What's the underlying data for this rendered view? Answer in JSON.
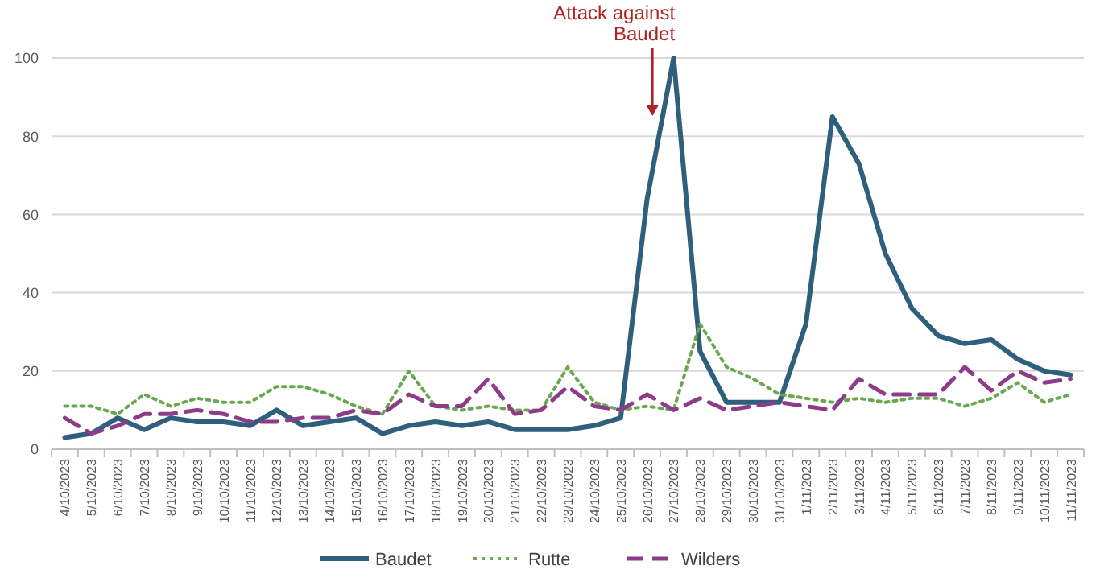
{
  "chart_data": {
    "type": "line",
    "categories": [
      "4/10/2023",
      "5/10/2023",
      "6/10/2023",
      "7/10/2023",
      "8/10/2023",
      "9/10/2023",
      "10/10/2023",
      "11/10/2023",
      "12/10/2023",
      "13/10/2023",
      "14/10/2023",
      "15/10/2023",
      "16/10/2023",
      "17/10/2023",
      "18/10/2023",
      "19/10/2023",
      "20/10/2023",
      "21/10/2023",
      "22/10/2023",
      "23/10/2023",
      "24/10/2023",
      "25/10/2023",
      "26/10/2023",
      "27/10/2023",
      "28/10/2023",
      "29/10/2023",
      "30/10/2023",
      "31/10/2023",
      "1/11/2023",
      "2/11/2023",
      "3/11/2023",
      "4/11/2023",
      "5/11/2023",
      "6/11/2023",
      "7/11/2023",
      "8/11/2023",
      "9/11/2023",
      "10/11/2023",
      "11/11/2023"
    ],
    "series": [
      {
        "name": "Baudet",
        "color": "#2e5f7d",
        "line_style": "solid",
        "values": [
          3,
          4,
          8,
          5,
          8,
          7,
          7,
          6,
          10,
          6,
          7,
          8,
          4,
          6,
          7,
          6,
          7,
          5,
          5,
          5,
          6,
          8,
          64,
          100,
          25,
          12,
          12,
          12,
          32,
          85,
          73,
          50,
          36,
          29,
          27,
          28,
          23,
          20,
          19
        ]
      },
      {
        "name": "Rutte",
        "color": "#6aa84f",
        "line_style": "dotted",
        "values": [
          11,
          11,
          9,
          14,
          11,
          13,
          12,
          12,
          16,
          16,
          14,
          11,
          9,
          20,
          11,
          10,
          11,
          10,
          10,
          21,
          12,
          10,
          11,
          10,
          32,
          21,
          18,
          14,
          13,
          12,
          13,
          12,
          13,
          13,
          11,
          13,
          17,
          12,
          14
        ]
      },
      {
        "name": "Wilders",
        "color": "#8e3b8a",
        "line_style": "dashed",
        "values": [
          8,
          4,
          6,
          9,
          9,
          10,
          9,
          7,
          7,
          8,
          8,
          10,
          9,
          14,
          11,
          11,
          18,
          9,
          10,
          16,
          11,
          10,
          14,
          10,
          13,
          10,
          11,
          12,
          11,
          10,
          18,
          14,
          14,
          14,
          21,
          15,
          20,
          17,
          18
        ]
      }
    ],
    "ylim": [
      0,
      100
    ],
    "yticks": [
      0,
      20,
      40,
      60,
      80,
      100
    ],
    "grid": "y",
    "legend": "bottom",
    "marker": "none",
    "annotations": [
      "Attack against Baudet"
    ]
  }
}
